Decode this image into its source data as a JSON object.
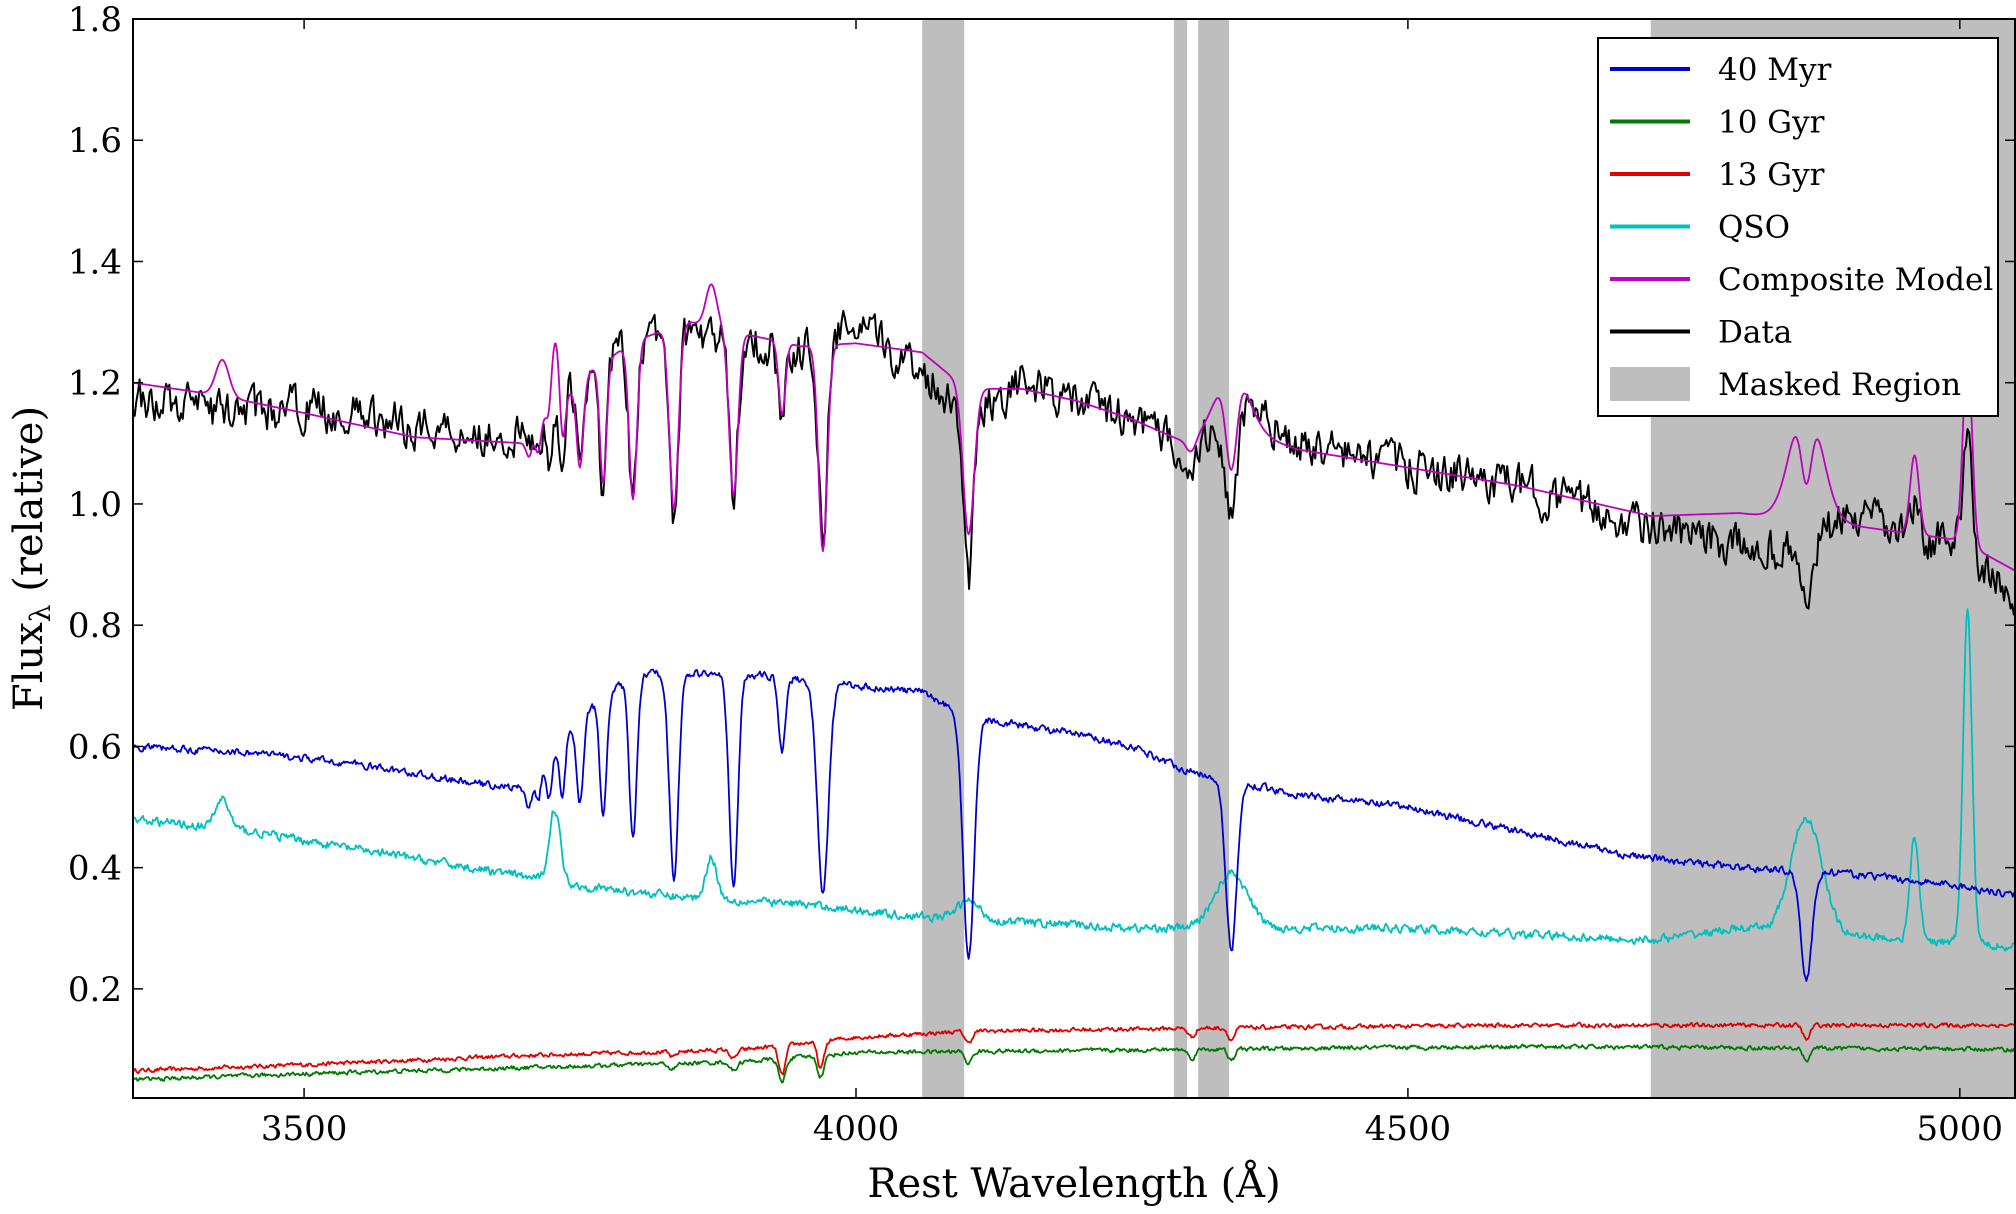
{
  "chart_data": {
    "type": "line",
    "title": "",
    "xlabel": "Rest Wavelength (Å)",
    "ylabel_main": "Flux",
    "ylabel_sub": "λ",
    "ylabel_rest": " (relative)",
    "xlim": [
      3345,
      5050
    ],
    "ylim": [
      0.02,
      1.8
    ],
    "x_ticks": [
      3500,
      4000,
      4500,
      5000
    ],
    "x_tick_labels": [
      "3500",
      "4000",
      "4500",
      "5000"
    ],
    "y_ticks": [
      0.2,
      0.4,
      0.6,
      0.8,
      1.0,
      1.2,
      1.4,
      1.6,
      1.8
    ],
    "y_tick_labels": [
      "0.2",
      "0.4",
      "0.6",
      "0.8",
      "1.0",
      "1.2",
      "1.4",
      "1.6",
      "1.8"
    ],
    "grid": false,
    "legend_position": "top-right",
    "masked_regions": [
      [
        4060,
        4098
      ],
      [
        4288,
        4300
      ],
      [
        4310,
        4338
      ],
      [
        4720,
        5050
      ]
    ],
    "legend": [
      {
        "label": "40 Myr",
        "color": "#0000cc",
        "kind": "line"
      },
      {
        "label": "10 Gyr",
        "color": "#007a00",
        "kind": "line"
      },
      {
        "label": "13 Gyr",
        "color": "#e00000",
        "kind": "line"
      },
      {
        "label": "QSO",
        "color": "#00bfbf",
        "kind": "line"
      },
      {
        "label": "Composite Model",
        "color": "#bf00bf",
        "kind": "line"
      },
      {
        "label": "Data",
        "color": "#000000",
        "kind": "line"
      },
      {
        "label": "Masked Region",
        "color": "#bebebe",
        "kind": "patch"
      }
    ],
    "series": [
      {
        "name": "40 Myr",
        "color": "#0000cc",
        "continuum": [
          [
            3345,
            0.6
          ],
          [
            3450,
            0.59
          ],
          [
            3550,
            0.57
          ],
          [
            3650,
            0.54
          ],
          [
            3700,
            0.53
          ],
          [
            3750,
            0.65
          ],
          [
            3800,
            0.72
          ],
          [
            3850,
            0.72
          ],
          [
            3900,
            0.72
          ],
          [
            3950,
            0.71
          ],
          [
            4000,
            0.7
          ],
          [
            4060,
            0.69
          ],
          [
            4100,
            0.65
          ],
          [
            4150,
            0.635
          ],
          [
            4200,
            0.62
          ],
          [
            4250,
            0.6
          ],
          [
            4300,
            0.56
          ],
          [
            4350,
            0.54
          ],
          [
            4400,
            0.52
          ],
          [
            4500,
            0.5
          ],
          [
            4600,
            0.46
          ],
          [
            4700,
            0.42
          ],
          [
            4800,
            0.4
          ],
          [
            4900,
            0.39
          ],
          [
            5000,
            0.37
          ],
          [
            5050,
            0.355
          ]
        ],
        "absorption": [
          [
            3704,
            0.04,
            2.5
          ],
          [
            3712,
            0.05,
            2.5
          ],
          [
            3722,
            0.07,
            2.5
          ],
          [
            3734,
            0.1,
            2.5
          ],
          [
            3750,
            0.14,
            3
          ],
          [
            3771,
            0.2,
            3
          ],
          [
            3798,
            0.27,
            3.5
          ],
          [
            3835,
            0.34,
            4
          ],
          [
            3889,
            0.35,
            4
          ],
          [
            3933,
            0.12,
            3
          ],
          [
            3970,
            0.35,
            5
          ],
          [
            4102,
            0.4,
            5
          ],
          [
            4340,
            0.28,
            5
          ],
          [
            4861,
            0.18,
            5
          ]
        ],
        "emission": [],
        "noise": 0.005
      },
      {
        "name": "10 Gyr",
        "color": "#007a00",
        "continuum": [
          [
            3345,
            0.05
          ],
          [
            3500,
            0.06
          ],
          [
            3700,
            0.07
          ],
          [
            3900,
            0.08
          ],
          [
            4000,
            0.095
          ],
          [
            4300,
            0.1
          ],
          [
            4600,
            0.105
          ],
          [
            5050,
            0.1
          ]
        ],
        "absorption": [
          [
            3834,
            0.01,
            3
          ],
          [
            3889,
            0.015,
            3
          ],
          [
            3933,
            0.04,
            3
          ],
          [
            3968,
            0.035,
            3
          ],
          [
            4102,
            0.02,
            3
          ],
          [
            4304,
            0.015,
            3
          ],
          [
            4340,
            0.02,
            3
          ],
          [
            4861,
            0.02,
            3
          ]
        ],
        "emission": [],
        "noise": 0.003
      },
      {
        "name": "13 Gyr",
        "color": "#e00000",
        "continuum": [
          [
            3345,
            0.065
          ],
          [
            3500,
            0.075
          ],
          [
            3700,
            0.09
          ],
          [
            3900,
            0.1
          ],
          [
            4000,
            0.12
          ],
          [
            4100,
            0.13
          ],
          [
            4300,
            0.135
          ],
          [
            4600,
            0.14
          ],
          [
            5050,
            0.14
          ]
        ],
        "absorption": [
          [
            3834,
            0.01,
            3
          ],
          [
            3889,
            0.015,
            3
          ],
          [
            3933,
            0.05,
            3
          ],
          [
            3968,
            0.045,
            3
          ],
          [
            4102,
            0.02,
            3
          ],
          [
            4304,
            0.015,
            3
          ],
          [
            4340,
            0.02,
            3
          ],
          [
            4861,
            0.025,
            3
          ]
        ],
        "emission": [],
        "noise": 0.003
      },
      {
        "name": "QSO",
        "color": "#00bfbf",
        "continuum": [
          [
            3345,
            0.48
          ],
          [
            3450,
            0.46
          ],
          [
            3550,
            0.43
          ],
          [
            3650,
            0.4
          ],
          [
            3750,
            0.37
          ],
          [
            3850,
            0.35
          ],
          [
            3950,
            0.34
          ],
          [
            4050,
            0.32
          ],
          [
            4150,
            0.31
          ],
          [
            4250,
            0.3
          ],
          [
            4350,
            0.3
          ],
          [
            4500,
            0.3
          ],
          [
            4600,
            0.29
          ],
          [
            4720,
            0.28
          ],
          [
            4800,
            0.3
          ],
          [
            5050,
            0.27
          ]
        ],
        "absorption": [],
        "emission": [
          [
            3426,
            0.05,
            6
          ],
          [
            3727,
            0.12,
            5
          ],
          [
            3869,
            0.07,
            5
          ],
          [
            4102,
            0.03,
            10
          ],
          [
            4340,
            0.09,
            15
          ],
          [
            4861,
            0.19,
            14
          ],
          [
            4959,
            0.17,
            4
          ],
          [
            5007,
            0.55,
            4
          ]
        ],
        "noise": 0.006
      },
      {
        "name": "Composite Model",
        "color": "#bf00bf",
        "continuum": [
          [
            3345,
            1.2
          ],
          [
            3420,
            1.18
          ],
          [
            3500,
            1.15
          ],
          [
            3600,
            1.11
          ],
          [
            3700,
            1.1
          ],
          [
            3760,
            1.22
          ],
          [
            3800,
            1.27
          ],
          [
            3850,
            1.3
          ],
          [
            3900,
            1.28
          ],
          [
            3950,
            1.26
          ],
          [
            4000,
            1.265
          ],
          [
            4060,
            1.25
          ],
          [
            4100,
            1.19
          ],
          [
            4150,
            1.19
          ],
          [
            4200,
            1.17
          ],
          [
            4250,
            1.14
          ],
          [
            4300,
            1.1
          ],
          [
            4350,
            1.12
          ],
          [
            4400,
            1.09
          ],
          [
            4500,
            1.06
          ],
          [
            4600,
            1.03
          ],
          [
            4720,
            0.98
          ],
          [
            4800,
            0.985
          ],
          [
            4900,
            0.965
          ],
          [
            5000,
            0.94
          ],
          [
            5050,
            0.89
          ]
        ],
        "absorption": [
          [
            3704,
            0.03,
            2.5
          ],
          [
            3712,
            0.04,
            2.5
          ],
          [
            3722,
            0.06,
            2.5
          ],
          [
            3734,
            0.1,
            2.5
          ],
          [
            3750,
            0.14,
            3
          ],
          [
            3771,
            0.2,
            3
          ],
          [
            3798,
            0.26,
            3.5
          ],
          [
            3835,
            0.3,
            4
          ],
          [
            3889,
            0.27,
            4
          ],
          [
            3933,
            0.12,
            3
          ],
          [
            3970,
            0.34,
            4
          ],
          [
            4102,
            0.24,
            5
          ],
          [
            4304,
            0.02,
            4
          ],
          [
            4340,
            0.16,
            5
          ],
          [
            4861,
            0.14,
            5
          ]
        ],
        "emission": [
          [
            3426,
            0.06,
            6
          ],
          [
            3727,
            0.12,
            5
          ],
          [
            3869,
            0.07,
            5
          ],
          [
            4340,
            0.1,
            15
          ],
          [
            4861,
            0.2,
            14
          ],
          [
            4959,
            0.13,
            4
          ],
          [
            5007,
            0.32,
            4
          ]
        ],
        "noise": 0.0
      },
      {
        "name": "Data",
        "color": "#000000",
        "continuum": [
          [
            3345,
            1.18
          ],
          [
            3420,
            1.15
          ],
          [
            3500,
            1.16
          ],
          [
            3600,
            1.13
          ],
          [
            3700,
            1.11
          ],
          [
            3760,
            1.22
          ],
          [
            3800,
            1.27
          ],
          [
            3850,
            1.28
          ],
          [
            3900,
            1.27
          ],
          [
            3950,
            1.25
          ],
          [
            4000,
            1.29
          ],
          [
            4060,
            1.22
          ],
          [
            4100,
            1.15
          ],
          [
            4150,
            1.2
          ],
          [
            4200,
            1.17
          ],
          [
            4250,
            1.14
          ],
          [
            4300,
            1.09
          ],
          [
            4350,
            1.16
          ],
          [
            4400,
            1.1
          ],
          [
            4500,
            1.06
          ],
          [
            4600,
            1.03
          ],
          [
            4720,
            0.96
          ],
          [
            4800,
            0.93
          ],
          [
            4850,
            0.92
          ],
          [
            4900,
            0.98
          ],
          [
            4950,
            0.95
          ],
          [
            5000,
            0.93
          ],
          [
            5050,
            0.84
          ]
        ],
        "absorption": [
          [
            3704,
            0.03,
            2.5
          ],
          [
            3712,
            0.05,
            2.5
          ],
          [
            3722,
            0.07,
            2.5
          ],
          [
            3734,
            0.11,
            2.5
          ],
          [
            3750,
            0.15,
            3
          ],
          [
            3771,
            0.22,
            3
          ],
          [
            3798,
            0.28,
            3.5
          ],
          [
            3835,
            0.29,
            4
          ],
          [
            3889,
            0.25,
            4
          ],
          [
            3933,
            0.12,
            3
          ],
          [
            3970,
            0.32,
            4
          ],
          [
            4102,
            0.28,
            4
          ],
          [
            4304,
            0.06,
            4
          ],
          [
            4340,
            0.18,
            5
          ],
          [
            4861,
            0.1,
            5
          ]
        ],
        "emission": [
          [
            5007,
            0.22,
            4
          ],
          [
            4959,
            0.05,
            4
          ]
        ],
        "noise": 0.03
      }
    ]
  }
}
